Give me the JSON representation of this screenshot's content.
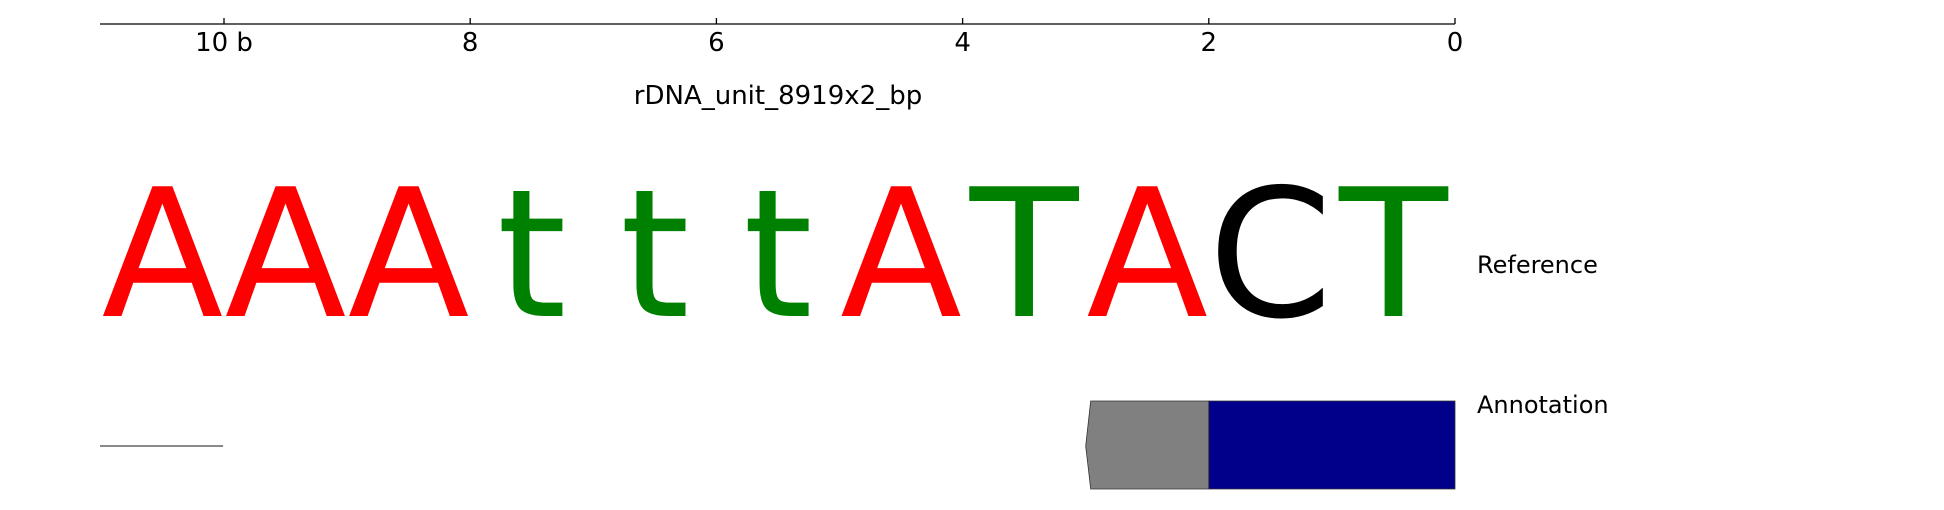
{
  "ruler": {
    "ticks": [
      {
        "pos": 10,
        "label": "10 b"
      },
      {
        "pos": 8,
        "label": "8"
      },
      {
        "pos": 6,
        "label": "6"
      },
      {
        "pos": 4,
        "label": "4"
      },
      {
        "pos": 2,
        "label": "2"
      },
      {
        "pos": 0,
        "label": "0"
      }
    ],
    "contig_name": "rDNA_unit_8919x2_bp"
  },
  "reference": {
    "label": "Reference",
    "bases": [
      {
        "base": "A",
        "color": "#ff0000"
      },
      {
        "base": "A",
        "color": "#ff0000"
      },
      {
        "base": "A",
        "color": "#ff0000"
      },
      {
        "base": "t",
        "color": "#008000"
      },
      {
        "base": "t",
        "color": "#008000"
      },
      {
        "base": "t",
        "color": "#008000"
      },
      {
        "base": "A",
        "color": "#ff0000"
      },
      {
        "base": "T",
        "color": "#008000"
      },
      {
        "base": "A",
        "color": "#ff0000"
      },
      {
        "base": "C",
        "color": "#000000"
      },
      {
        "base": "T",
        "color": "#008000"
      }
    ]
  },
  "annotation": {
    "label": "Annotation",
    "features": [
      {
        "start": 3,
        "end": 2,
        "color": "#808080",
        "arrow": "left"
      },
      {
        "start": 2,
        "end": 0,
        "color": "#00008b",
        "arrow": "none"
      }
    ],
    "scale_bar_length": 1
  },
  "colors": {
    "A": "#ff0000",
    "T": "#008000",
    "C": "#000000",
    "feature_utr": "#808080",
    "feature_cds": "#00008b"
  }
}
